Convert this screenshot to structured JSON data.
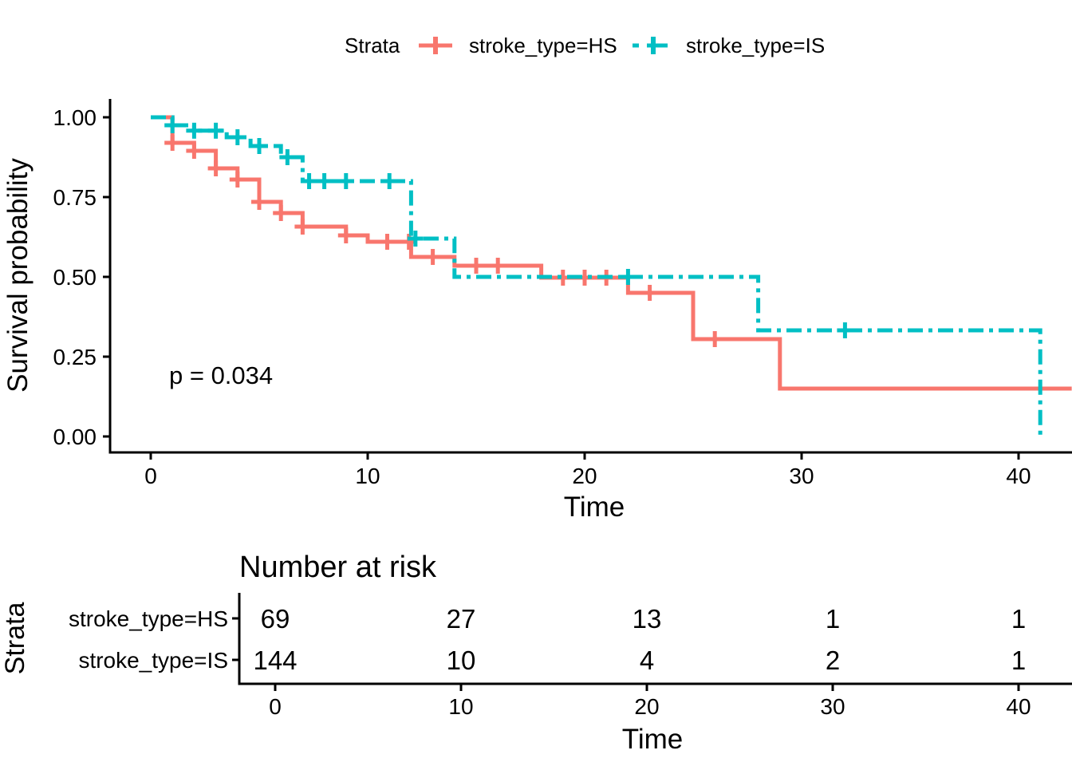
{
  "colors": {
    "hs": "#F8766D",
    "is": "#00BFC4",
    "axis": "#000000",
    "text": "#000000",
    "background": "#ffffff"
  },
  "legend": {
    "title": "Strata",
    "items": [
      {
        "id": "hs",
        "label": "stroke_type=HS",
        "line_style": "solid"
      },
      {
        "id": "is",
        "label": "stroke_type=IS",
        "line_style": "dashdot"
      }
    ]
  },
  "annotations": {
    "pvalue": "p = 0.034"
  },
  "chart_data": {
    "type": "line",
    "subtype": "kaplan-meier-step",
    "title": "",
    "xlabel": "Time",
    "ylabel": "Survival probability",
    "xlim": [
      0,
      42.4
    ],
    "ylim": [
      0,
      1
    ],
    "xticks": [
      0,
      10,
      20,
      30,
      40
    ],
    "ytick_labels": [
      "0.00",
      "0.25",
      "0.50",
      "0.75",
      "1.00"
    ],
    "yticks": [
      0,
      0.25,
      0.5,
      0.75,
      1.0
    ],
    "grid": false,
    "legend_position": "top",
    "series": [
      {
        "name": "stroke_type=HS",
        "color": "#F8766D",
        "style": "solid",
        "steps": [
          [
            0,
            1.0
          ],
          [
            1,
            0.92
          ],
          [
            2,
            0.895
          ],
          [
            3,
            0.84
          ],
          [
            4,
            0.805
          ],
          [
            5,
            0.735
          ],
          [
            6,
            0.7
          ],
          [
            7,
            0.6575
          ],
          [
            9,
            0.63
          ],
          [
            10,
            0.61
          ],
          [
            12,
            0.5625
          ],
          [
            14,
            0.535
          ],
          [
            18,
            0.4975
          ],
          [
            22,
            0.45
          ],
          [
            25,
            0.305
          ],
          [
            29,
            0.15
          ]
        ],
        "end_time": 42.45,
        "censors": [
          [
            1,
            0.92
          ],
          [
            2,
            0.895
          ],
          [
            3,
            0.84
          ],
          [
            4,
            0.805
          ],
          [
            5,
            0.735
          ],
          [
            6,
            0.7
          ],
          [
            7,
            0.6575
          ],
          [
            9,
            0.63
          ],
          [
            10.9,
            0.61
          ],
          [
            11.9,
            0.61
          ],
          [
            13,
            0.5625
          ],
          [
            15,
            0.535
          ],
          [
            16,
            0.535
          ],
          [
            19,
            0.4975
          ],
          [
            20,
            0.4975
          ],
          [
            21,
            0.4975
          ],
          [
            23,
            0.45
          ],
          [
            26,
            0.305
          ]
        ]
      },
      {
        "name": "stroke_type=IS",
        "color": "#00BFC4",
        "style": "dashdot",
        "steps": [
          [
            0,
            1.0
          ],
          [
            1,
            0.975
          ],
          [
            2,
            0.958
          ],
          [
            3.5,
            0.9375
          ],
          [
            4.6,
            0.91
          ],
          [
            6,
            0.875
          ],
          [
            7,
            0.8
          ],
          [
            12,
            0.62
          ],
          [
            14,
            0.5
          ],
          [
            28,
            0.3325
          ],
          [
            41,
            0.0
          ]
        ],
        "end_time": null,
        "censors": [
          [
            1,
            0.975
          ],
          [
            2,
            0.958
          ],
          [
            3,
            0.958
          ],
          [
            4,
            0.9375
          ],
          [
            5,
            0.91
          ],
          [
            6.3,
            0.875
          ],
          [
            7.3,
            0.8
          ],
          [
            8,
            0.8
          ],
          [
            9,
            0.8
          ],
          [
            11,
            0.8
          ],
          [
            12.2,
            0.62
          ],
          [
            22,
            0.5
          ],
          [
            32,
            0.3325
          ]
        ]
      }
    ]
  },
  "risk_table": {
    "title": "Number at risk",
    "ylabel": "Strata",
    "xlabel": "Time",
    "xticks": [
      0,
      10,
      20,
      30,
      40
    ],
    "rows": [
      {
        "id": "hs",
        "label": "stroke_type=HS",
        "color": "#F8766D",
        "values": [
          "69",
          "27",
          "13",
          "1",
          "1"
        ]
      },
      {
        "id": "is",
        "label": "stroke_type=IS",
        "color": "#00BFC4",
        "values": [
          "144",
          "10",
          "4",
          "2",
          "1"
        ]
      }
    ]
  }
}
